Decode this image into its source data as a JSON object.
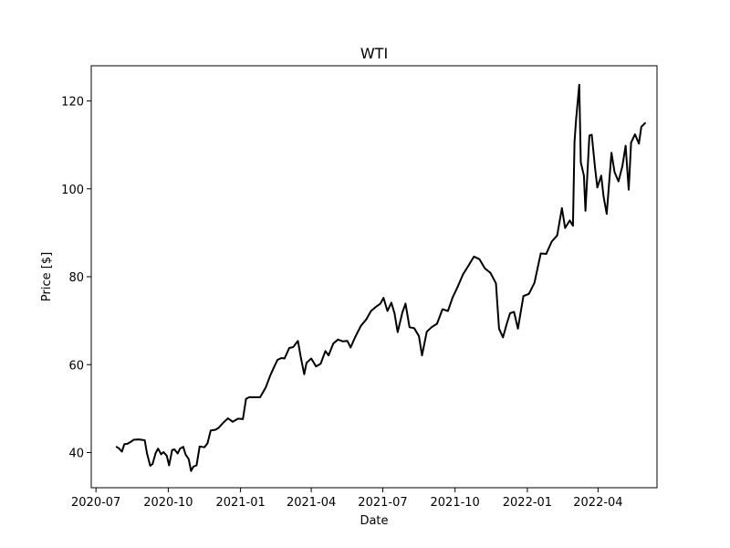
{
  "chart_data": {
    "type": "line",
    "title": "WTI",
    "xlabel": "Date",
    "ylabel": "Price [$]",
    "xlim": [
      "2020-06-25",
      "2022-06-15"
    ],
    "ylim": [
      32,
      128
    ],
    "x_ticks": [
      {
        "date": "2020-07-01",
        "label": "2020-07"
      },
      {
        "date": "2020-10-01",
        "label": "2020-10"
      },
      {
        "date": "2021-01-01",
        "label": "2021-01"
      },
      {
        "date": "2021-04-01",
        "label": "2021-04"
      },
      {
        "date": "2021-07-01",
        "label": "2021-07"
      },
      {
        "date": "2021-10-01",
        "label": "2021-10"
      },
      {
        "date": "2022-01-01",
        "label": "2022-01"
      },
      {
        "date": "2022-04-01",
        "label": "2022-04"
      }
    ],
    "y_ticks": [
      {
        "value": 40,
        "label": "40"
      },
      {
        "value": 60,
        "label": "60"
      },
      {
        "value": 80,
        "label": "80"
      },
      {
        "value": 100,
        "label": "100"
      },
      {
        "value": 120,
        "label": "120"
      }
    ],
    "grid": false,
    "line_color": "#000000",
    "series": [
      {
        "x": [
          "2020-07-27",
          "2020-07-30",
          "2020-08-03",
          "2020-08-06",
          "2020-08-10",
          "2020-08-14",
          "2020-08-18",
          "2020-08-24",
          "2020-08-28",
          "2020-09-01",
          "2020-09-04",
          "2020-09-08",
          "2020-09-11",
          "2020-09-15",
          "2020-09-18",
          "2020-09-22",
          "2020-09-25",
          "2020-09-29",
          "2020-10-02",
          "2020-10-06",
          "2020-10-09",
          "2020-10-13",
          "2020-10-16",
          "2020-10-20",
          "2020-10-23",
          "2020-10-27",
          "2020-10-30",
          "2020-11-02",
          "2020-11-06",
          "2020-11-10",
          "2020-11-16",
          "2020-11-20",
          "2020-11-24",
          "2020-11-30",
          "2020-12-04",
          "2020-12-10",
          "2020-12-16",
          "2020-12-22",
          "2020-12-29",
          "2021-01-04",
          "2021-01-08",
          "2021-01-12",
          "2021-01-19",
          "2021-01-26",
          "2021-02-02",
          "2021-02-08",
          "2021-02-12",
          "2021-02-17",
          "2021-02-22",
          "2021-02-26",
          "2021-03-04",
          "2021-03-09",
          "2021-03-15",
          "2021-03-19",
          "2021-03-23",
          "2021-03-26",
          "2021-04-01",
          "2021-04-07",
          "2021-04-13",
          "2021-04-19",
          "2021-04-23",
          "2021-04-29",
          "2021-05-05",
          "2021-05-11",
          "2021-05-17",
          "2021-05-21",
          "2021-05-27",
          "2021-06-03",
          "2021-06-10",
          "2021-06-16",
          "2021-06-22",
          "2021-06-28",
          "2021-07-02",
          "2021-07-07",
          "2021-07-12",
          "2021-07-16",
          "2021-07-20",
          "2021-07-26",
          "2021-07-30",
          "2021-08-04",
          "2021-08-10",
          "2021-08-16",
          "2021-08-20",
          "2021-08-26",
          "2021-09-01",
          "2021-09-08",
          "2021-09-15",
          "2021-09-22",
          "2021-09-28",
          "2021-10-04",
          "2021-10-11",
          "2021-10-18",
          "2021-10-25",
          "2021-11-01",
          "2021-11-08",
          "2021-11-15",
          "2021-11-22",
          "2021-11-26",
          "2021-12-01",
          "2021-12-06",
          "2021-12-10",
          "2021-12-15",
          "2021-12-20",
          "2021-12-27",
          "2022-01-03",
          "2022-01-10",
          "2022-01-18",
          "2022-01-25",
          "2022-02-01",
          "2022-02-08",
          "2022-02-14",
          "2022-02-18",
          "2022-02-24",
          "2022-02-28",
          "2022-03-02",
          "2022-03-04",
          "2022-03-08",
          "2022-03-10",
          "2022-03-14",
          "2022-03-16",
          "2022-03-21",
          "2022-03-24",
          "2022-03-28",
          "2022-03-31",
          "2022-04-05",
          "2022-04-08",
          "2022-04-12",
          "2022-04-18",
          "2022-04-22",
          "2022-04-27",
          "2022-05-02",
          "2022-05-06",
          "2022-05-10",
          "2022-05-13",
          "2022-05-18",
          "2022-05-23",
          "2022-05-26",
          "2022-05-31"
        ],
        "y": [
          41.3,
          41.0,
          40.2,
          41.9,
          42.0,
          42.4,
          42.9,
          43.0,
          42.9,
          42.8,
          39.8,
          37.0,
          37.4,
          39.9,
          40.9,
          39.6,
          40.1,
          39.3,
          37.1,
          40.6,
          40.7,
          39.8,
          40.9,
          41.3,
          39.6,
          38.5,
          35.8,
          36.8,
          37.1,
          41.4,
          41.2,
          42.1,
          45.0,
          45.2,
          45.6,
          46.8,
          47.8,
          47.0,
          47.7,
          47.6,
          52.2,
          52.6,
          52.6,
          52.6,
          54.8,
          57.6,
          59.2,
          61.1,
          61.5,
          61.4,
          63.8,
          64.0,
          65.4,
          61.4,
          57.8,
          60.4,
          61.4,
          59.6,
          60.2,
          63.1,
          62.1,
          64.8,
          65.7,
          65.3,
          65.4,
          63.9,
          66.3,
          68.8,
          70.3,
          72.2,
          73.1,
          73.9,
          75.2,
          72.2,
          74.1,
          71.6,
          67.4,
          71.9,
          73.9,
          68.5,
          68.3,
          66.5,
          62.1,
          67.5,
          68.5,
          69.3,
          72.6,
          72.2,
          75.3,
          77.6,
          80.5,
          82.5,
          84.6,
          84.0,
          81.9,
          80.9,
          78.5,
          68.2,
          66.2,
          69.4,
          71.7,
          72.0,
          68.2,
          75.6,
          76.1,
          78.6,
          85.3,
          85.2,
          88.0,
          89.4,
          95.6,
          91.1,
          92.8,
          91.6,
          110.6,
          115.7,
          123.7,
          106.0,
          103.0,
          95.0,
          112.1,
          112.3,
          105.0,
          100.3,
          103.0,
          98.3,
          94.3,
          108.2,
          103.8,
          101.7,
          105.2,
          109.8,
          99.8,
          110.5,
          112.4,
          110.3,
          114.1,
          115.0
        ]
      }
    ]
  }
}
